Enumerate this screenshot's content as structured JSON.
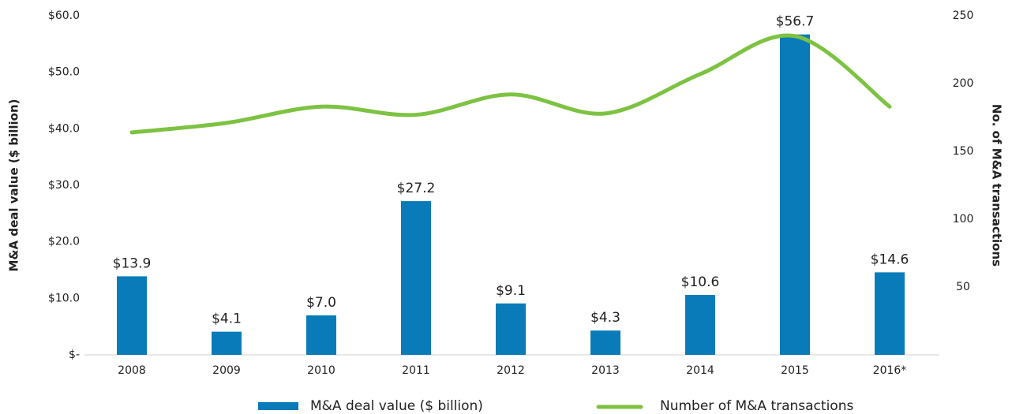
{
  "chart_data": {
    "type": "bar",
    "categories": [
      "2008",
      "2009",
      "2010",
      "2011",
      "2012",
      "2013",
      "2014",
      "2015",
      "2016*"
    ],
    "series": [
      {
        "name": "M&A deal value ($ billion)",
        "type": "bar",
        "color": "#0a7bb9",
        "values": [
          13.9,
          4.1,
          7.0,
          27.2,
          9.1,
          4.3,
          10.6,
          56.7,
          14.6
        ],
        "value_labels": [
          "$13.9",
          "$4.1",
          "$7.0",
          "$27.2",
          "$9.1",
          "$4.3",
          "$10.6",
          "$56.7",
          "$14.6"
        ]
      },
      {
        "name": "Number of M&A transactions",
        "type": "line",
        "axis": "y2",
        "color": "#7dc242",
        "values": [
          164,
          171,
          183,
          177,
          192,
          178,
          207,
          235,
          183
        ]
      }
    ],
    "ylabel": "M&A deal value ($ billion)",
    "y2label": "No. of M&A transactions",
    "ylim": [
      0,
      60
    ],
    "yticks": [
      {
        "value": 0,
        "label": "$-"
      },
      {
        "value": 10,
        "label": "$10.0"
      },
      {
        "value": 20,
        "label": "$20.0"
      },
      {
        "value": 30,
        "label": "$30.0"
      },
      {
        "value": 40,
        "label": "$40.0"
      },
      {
        "value": 50,
        "label": "$50.0"
      },
      {
        "value": 60,
        "label": "$60.0"
      }
    ],
    "y2lim": [
      0,
      250
    ],
    "y2ticks": [
      50,
      100,
      150,
      200,
      250
    ],
    "legend": "bottom"
  }
}
